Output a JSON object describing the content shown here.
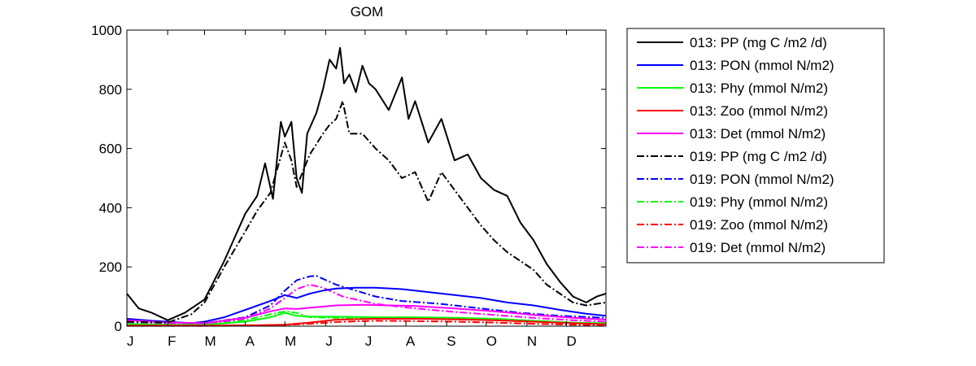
{
  "chart_data": {
    "type": "line",
    "title": "GOM",
    "xlabel": "",
    "ylabel": "",
    "xlim": [
      1,
      365
    ],
    "ylim": [
      0,
      1000
    ],
    "yticks": [
      0,
      200,
      400,
      600,
      800,
      1000
    ],
    "xticks": [
      {
        "label": "J",
        "day": 1
      },
      {
        "label": "F",
        "day": 32
      },
      {
        "label": "M",
        "day": 60
      },
      {
        "label": "A",
        "day": 91
      },
      {
        "label": "M",
        "day": 121
      },
      {
        "label": "J",
        "day": 152
      },
      {
        "label": "J",
        "day": 182
      },
      {
        "label": "A",
        "day": 213
      },
      {
        "label": "S",
        "day": 244
      },
      {
        "label": "O",
        "day": 274
      },
      {
        "label": "N",
        "day": 305
      },
      {
        "label": "D",
        "day": 335
      }
    ],
    "legend_position": "outside-right",
    "grid": false,
    "series": [
      {
        "name": "013: PP (mg C /m2 /d)",
        "color": "#000000",
        "dash": "solid",
        "x": [
          1,
          10,
          20,
          32,
          45,
          60,
          75,
          91,
          100,
          106,
          112,
          118,
          121,
          126,
          130,
          134,
          138,
          145,
          150,
          155,
          160,
          163,
          166,
          170,
          175,
          180,
          185,
          190,
          200,
          210,
          215,
          220,
          230,
          240,
          250,
          260,
          270,
          280,
          290,
          300,
          310,
          320,
          330,
          340,
          350,
          358,
          365
        ],
        "y": [
          110,
          60,
          45,
          20,
          45,
          90,
          220,
          380,
          440,
          550,
          430,
          690,
          640,
          690,
          500,
          450,
          650,
          720,
          800,
          900,
          870,
          940,
          820,
          850,
          790,
          880,
          820,
          800,
          730,
          840,
          700,
          760,
          620,
          700,
          560,
          580,
          500,
          460,
          440,
          350,
          290,
          210,
          150,
          100,
          80,
          100,
          110
        ]
      },
      {
        "name": "013: PON (mmol N/m2)",
        "color": "#0000ff",
        "dash": "solid",
        "x": [
          1,
          20,
          32,
          50,
          60,
          75,
          91,
          110,
          121,
          130,
          140,
          150,
          160,
          175,
          190,
          210,
          230,
          250,
          270,
          290,
          310,
          330,
          350,
          365
        ],
        "y": [
          25,
          18,
          15,
          10,
          15,
          30,
          55,
          85,
          105,
          95,
          110,
          120,
          127,
          130,
          130,
          125,
          115,
          105,
          95,
          80,
          70,
          55,
          42,
          35
        ]
      },
      {
        "name": "013: Phy (mmol N/m2)",
        "color": "#00ff00",
        "dash": "solid",
        "x": [
          1,
          32,
          60,
          91,
          110,
          121,
          130,
          140,
          160,
          190,
          220,
          250,
          280,
          310,
          340,
          365
        ],
        "y": [
          8,
          5,
          5,
          15,
          30,
          45,
          35,
          32,
          32,
          30,
          30,
          28,
          25,
          18,
          12,
          10
        ]
      },
      {
        "name": "013: Zoo (mmol N/m2)",
        "color": "#ff0000",
        "dash": "solid",
        "x": [
          1,
          60,
          100,
          121,
          140,
          160,
          190,
          220,
          250,
          280,
          310,
          340,
          365
        ],
        "y": [
          2,
          2,
          3,
          5,
          12,
          22,
          25,
          25,
          23,
          20,
          15,
          10,
          6
        ]
      },
      {
        "name": "013: Det (mmol N/m2)",
        "color": "#ff00ff",
        "dash": "solid",
        "x": [
          1,
          32,
          60,
          91,
          110,
          121,
          130,
          140,
          160,
          180,
          200,
          220,
          250,
          280,
          310,
          340,
          365
        ],
        "y": [
          20,
          12,
          10,
          28,
          50,
          60,
          58,
          62,
          70,
          72,
          70,
          68,
          60,
          50,
          38,
          28,
          22
        ]
      },
      {
        "name": "019: PP (mg C /m2 /d)",
        "color": "#000000",
        "dash": "dashdot",
        "x": [
          1,
          32,
          50,
          60,
          75,
          91,
          100,
          110,
          121,
          126,
          130,
          140,
          150,
          155,
          160,
          165,
          170,
          180,
          190,
          200,
          210,
          220,
          230,
          240,
          250,
          260,
          270,
          280,
          290,
          300,
          310,
          320,
          330,
          340,
          350,
          365
        ],
        "y": [
          15,
          12,
          40,
          80,
          200,
          320,
          390,
          450,
          620,
          560,
          470,
          580,
          650,
          680,
          700,
          760,
          650,
          650,
          600,
          560,
          500,
          520,
          420,
          520,
          460,
          400,
          340,
          290,
          250,
          220,
          190,
          140,
          110,
          80,
          70,
          80
        ]
      },
      {
        "name": "019: PON (mmol N/m2)",
        "color": "#0000ff",
        "dash": "dashdot",
        "x": [
          1,
          32,
          60,
          91,
          110,
          121,
          130,
          140,
          145,
          150,
          160,
          175,
          190,
          210,
          240,
          270,
          300,
          330,
          365
        ],
        "y": [
          15,
          10,
          10,
          30,
          70,
          120,
          155,
          168,
          170,
          160,
          140,
          120,
          100,
          85,
          75,
          60,
          45,
          35,
          28
        ]
      },
      {
        "name": "019: Phy (mmol N/m2)",
        "color": "#00ff00",
        "dash": "dashdot",
        "x": [
          1,
          32,
          60,
          91,
          110,
          121,
          130,
          140,
          160,
          190,
          220,
          250,
          280,
          310,
          340,
          365
        ],
        "y": [
          6,
          4,
          4,
          20,
          40,
          50,
          45,
          30,
          28,
          28,
          27,
          25,
          20,
          15,
          10,
          8
        ]
      },
      {
        "name": "019: Zoo (mmol N/m2)",
        "color": "#ff0000",
        "dash": "dashdot",
        "x": [
          1,
          60,
          100,
          121,
          140,
          160,
          190,
          220,
          250,
          280,
          310,
          340,
          365
        ],
        "y": [
          1,
          1,
          2,
          4,
          8,
          14,
          18,
          17,
          15,
          12,
          8,
          5,
          3
        ]
      },
      {
        "name": "019: Det (mmol N/m2)",
        "color": "#ff00ff",
        "dash": "dashdot",
        "x": [
          1,
          32,
          60,
          91,
          110,
          121,
          130,
          140,
          150,
          165,
          190,
          220,
          250,
          280,
          310,
          340,
          365
        ],
        "y": [
          12,
          8,
          8,
          25,
          60,
          95,
          125,
          140,
          130,
          100,
          75,
          60,
          48,
          38,
          28,
          20,
          15
        ]
      }
    ]
  }
}
